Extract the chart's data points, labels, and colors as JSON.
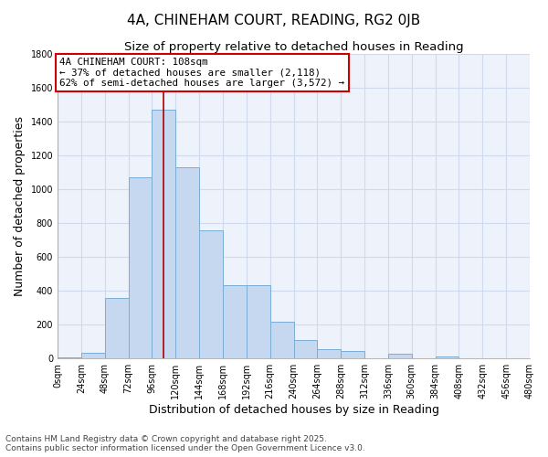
{
  "title": "4A, CHINEHAM COURT, READING, RG2 0JB",
  "subtitle": "Size of property relative to detached houses in Reading",
  "xlabel": "Distribution of detached houses by size in Reading",
  "ylabel": "Number of detached properties",
  "bar_color": "#c5d8f0",
  "bar_edge_color": "#7badd4",
  "background_color": "#eef2fb",
  "grid_color": "#d0daef",
  "annotation_box_color": "#cc0000",
  "annotation_text": "4A CHINEHAM COURT: 108sqm\n← 37% of detached houses are smaller (2,118)\n62% of semi-detached houses are larger (3,572) →",
  "property_size_sqm": 108,
  "marker_color": "#aa0000",
  "bin_edges": [
    0,
    24,
    48,
    72,
    96,
    120,
    144,
    168,
    192,
    216,
    240,
    264,
    288,
    312,
    336,
    360,
    384,
    408,
    432,
    456,
    480
  ],
  "bin_labels": [
    "0sqm",
    "24sqm",
    "48sqm",
    "72sqm",
    "96sqm",
    "120sqm",
    "144sqm",
    "168sqm",
    "192sqm",
    "216sqm",
    "240sqm",
    "264sqm",
    "288sqm",
    "312sqm",
    "336sqm",
    "360sqm",
    "384sqm",
    "408sqm",
    "432sqm",
    "456sqm",
    "480sqm"
  ],
  "counts": [
    8,
    35,
    360,
    1070,
    1470,
    1130,
    760,
    435,
    435,
    220,
    110,
    55,
    45,
    0,
    30,
    0,
    15,
    0,
    0,
    0,
    0
  ],
  "ylim": [
    0,
    1800
  ],
  "yticks": [
    0,
    200,
    400,
    600,
    800,
    1000,
    1200,
    1400,
    1600,
    1800
  ],
  "footer": "Contains HM Land Registry data © Crown copyright and database right 2025.\nContains public sector information licensed under the Open Government Licence v3.0.",
  "title_fontsize": 11,
  "subtitle_fontsize": 9.5,
  "label_fontsize": 9,
  "tick_fontsize": 7,
  "footer_fontsize": 6.5
}
